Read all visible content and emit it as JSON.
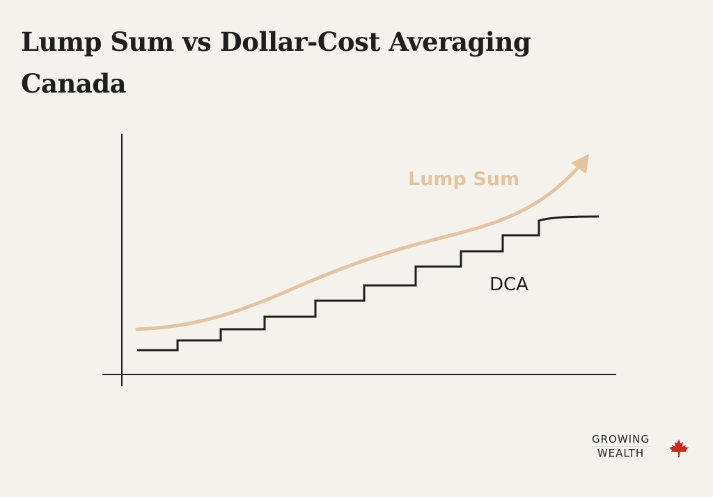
{
  "title": {
    "line1": "Lump Sum vs Dollar-Cost Averaging",
    "line2": "Canada"
  },
  "labels": {
    "lump_sum": "Lump Sum",
    "dca": "DCA"
  },
  "colors": {
    "lump_sum": "#e2c4a2",
    "dca": "#1e1e1e",
    "background": "#f5f2ee",
    "maple_leaf": "#c8281e"
  },
  "logo": {
    "line1": "GROWING",
    "line2": "WEALTH",
    "icon": "maple-leaf-icon"
  }
}
